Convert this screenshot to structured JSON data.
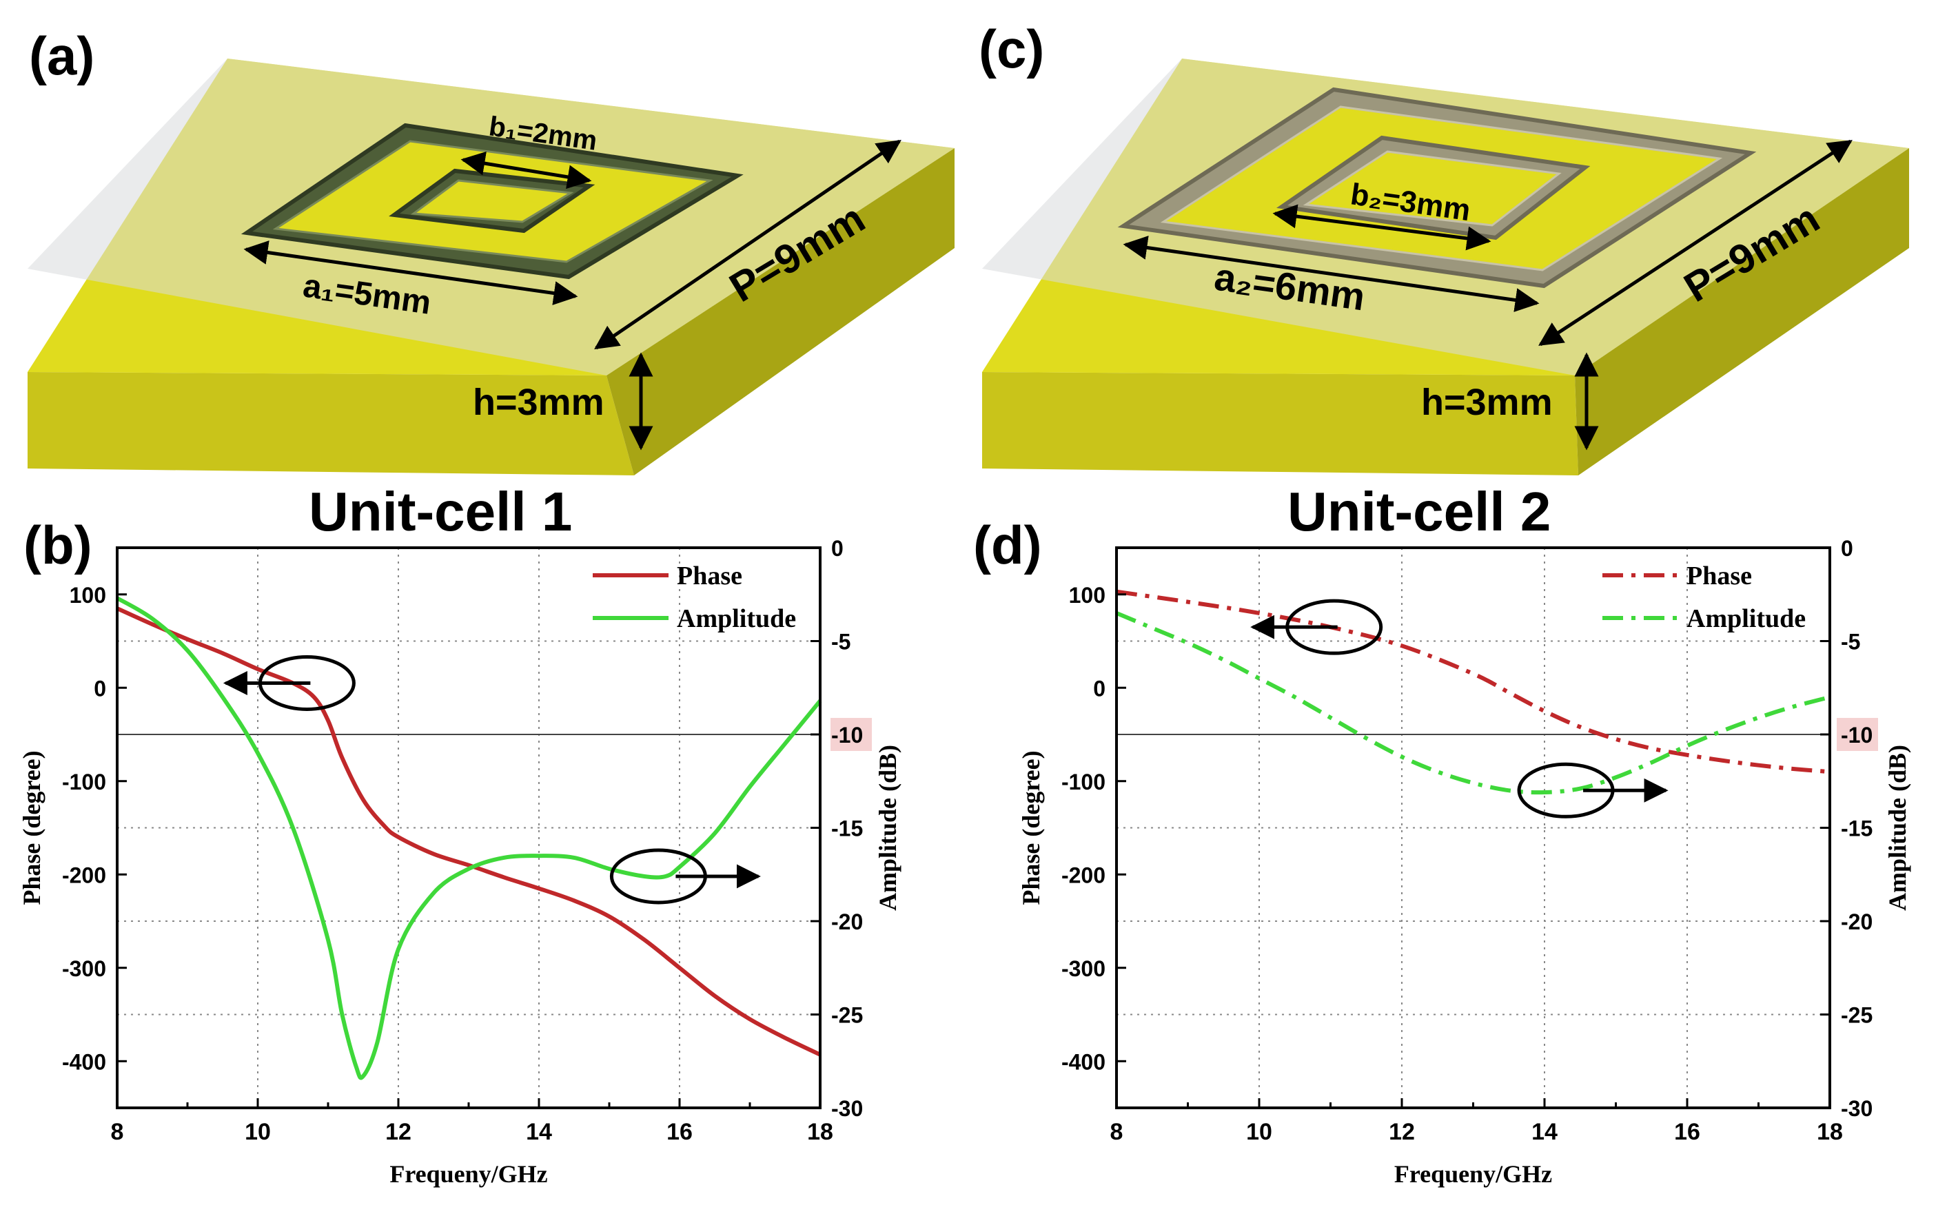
{
  "panels": {
    "a": {
      "label": "(a)",
      "dims": {
        "b": "b₁=2mm",
        "a": "a₁=5mm",
        "p": "P=9mm",
        "h": "h=3mm"
      },
      "colors": {
        "ring": "#4e5e38",
        "ring_dark": "#2f3a22",
        "ring_light": "#7a8a5a"
      }
    },
    "c": {
      "label": "(c)",
      "dims": {
        "b": "b₂=3mm",
        "a": "a₂=6mm",
        "p": "P=9mm",
        "h": "h=3mm"
      },
      "colors": {
        "ring": "#9c977d",
        "ring_dark": "#6e6a55",
        "ring_light": "#c8c3a8"
      }
    },
    "b": {
      "label": "(b)",
      "title": "Unit-cell 1"
    },
    "d": {
      "label": "(d)",
      "title": "Unit-cell 2"
    }
  },
  "colors": {
    "yellow": "#e0dc1e",
    "yellow_front": "#c9c41a",
    "yellow_side": "#a8a514",
    "glass": "#d9dadc",
    "phase": "#c0282a",
    "amplitude": "#3fd83a",
    "highlight": "#f5d2d2"
  },
  "chart_data": [
    {
      "type": "line",
      "panel": "b",
      "title": "Unit-cell 1",
      "xlabel": "Frequeny/GHz",
      "ylabel_left": "Phase (degree)",
      "ylabel_right": "Amplitude (dB)",
      "xlim": [
        8,
        18
      ],
      "ylim_left": [
        -450,
        150
      ],
      "ylim_right": [
        -30,
        0
      ],
      "xticks": [
        8,
        10,
        12,
        14,
        16,
        18
      ],
      "yticks_left": [
        100,
        0,
        -100,
        -200,
        -300,
        -400
      ],
      "yticks_right": [
        0,
        -5,
        -10,
        -15,
        -20,
        -25,
        -30
      ],
      "highlight_tick": "-10",
      "reference_line_db": -10,
      "legend": [
        "Phase",
        "Amplitude"
      ],
      "series": [
        {
          "name": "Phase",
          "axis": "left",
          "style": "solid",
          "x": [
            8,
            8.5,
            9,
            9.5,
            10,
            10.5,
            10.8,
            11,
            11.2,
            11.5,
            11.8,
            12,
            12.5,
            13,
            13.5,
            14,
            14.5,
            15,
            15.5,
            16,
            16.5,
            17,
            17.5,
            18
          ],
          "y": [
            85,
            68,
            52,
            37,
            20,
            5,
            -10,
            -35,
            -75,
            -120,
            -148,
            -160,
            -178,
            -190,
            -203,
            -215,
            -228,
            -245,
            -270,
            -300,
            -330,
            -355,
            -375,
            -393
          ]
        },
        {
          "name": "Amplitude",
          "axis": "right",
          "style": "solid",
          "x": [
            8,
            8.5,
            9,
            9.5,
            10,
            10.5,
            11,
            11.2,
            11.4,
            11.5,
            11.7,
            12,
            12.5,
            13,
            13.5,
            14,
            14.5,
            15,
            15.5,
            15.8,
            16,
            16.5,
            17,
            17.5,
            18
          ],
          "y": [
            -2.7,
            -3.8,
            -5.5,
            -8,
            -11,
            -15,
            -21,
            -25,
            -27.8,
            -28.3,
            -26.5,
            -21.5,
            -18.5,
            -17.2,
            -16.6,
            -16.5,
            -16.6,
            -17.2,
            -17.6,
            -17.6,
            -17.1,
            -15.3,
            -12.8,
            -10.5,
            -8.2
          ]
        }
      ],
      "annotations": [
        {
          "target": "Phase",
          "x": 10.7,
          "y_left": 5,
          "arrow": "left"
        },
        {
          "target": "Amplitude",
          "x": 15.7,
          "y_right": -17.6,
          "arrow": "right"
        }
      ]
    },
    {
      "type": "line",
      "panel": "d",
      "title": "Unit-cell 2",
      "xlabel": "Frequeny/GHz",
      "ylabel_left": "Phase (degree)",
      "ylabel_right": "Amplitude (dB)",
      "xlim": [
        8,
        18
      ],
      "ylim_left": [
        -450,
        150
      ],
      "ylim_right": [
        -30,
        0
      ],
      "xticks": [
        8,
        10,
        12,
        14,
        16,
        18
      ],
      "yticks_left": [
        100,
        0,
        -100,
        -200,
        -300,
        -400
      ],
      "yticks_right": [
        0,
        -5,
        -10,
        -15,
        -20,
        -25,
        -30
      ],
      "highlight_tick": "-10",
      "reference_line_db": -10,
      "legend": [
        "Phase",
        "Amplitude"
      ],
      "series": [
        {
          "name": "Phase",
          "axis": "left",
          "style": "dashdot",
          "x": [
            8,
            9,
            10,
            11,
            12,
            13,
            13.5,
            14,
            14.5,
            15,
            15.5,
            16,
            16.5,
            17,
            17.5,
            18
          ],
          "y": [
            103,
            92,
            80,
            65,
            45,
            15,
            -5,
            -25,
            -42,
            -55,
            -65,
            -72,
            -78,
            -83,
            -87,
            -90
          ]
        },
        {
          "name": "Amplitude",
          "axis": "right",
          "style": "dashdot",
          "x": [
            8,
            8.5,
            9,
            9.5,
            10,
            10.5,
            11,
            11.5,
            12,
            12.5,
            13,
            13.5,
            14,
            14.5,
            15,
            15.5,
            16,
            16.5,
            17,
            17.5,
            18
          ],
          "y": [
            -3.5,
            -4.3,
            -5.1,
            -6,
            -7,
            -8,
            -9.1,
            -10.2,
            -11.2,
            -12,
            -12.6,
            -13,
            -13.1,
            -12.9,
            -12.3,
            -11.5,
            -10.6,
            -9.8,
            -9.1,
            -8.5,
            -8.0
          ]
        }
      ],
      "annotations": [
        {
          "target": "Phase",
          "x": 11.05,
          "y_left": 65,
          "arrow": "left"
        },
        {
          "target": "Amplitude",
          "x": 14.3,
          "y_right": -13,
          "arrow": "right"
        }
      ]
    }
  ]
}
